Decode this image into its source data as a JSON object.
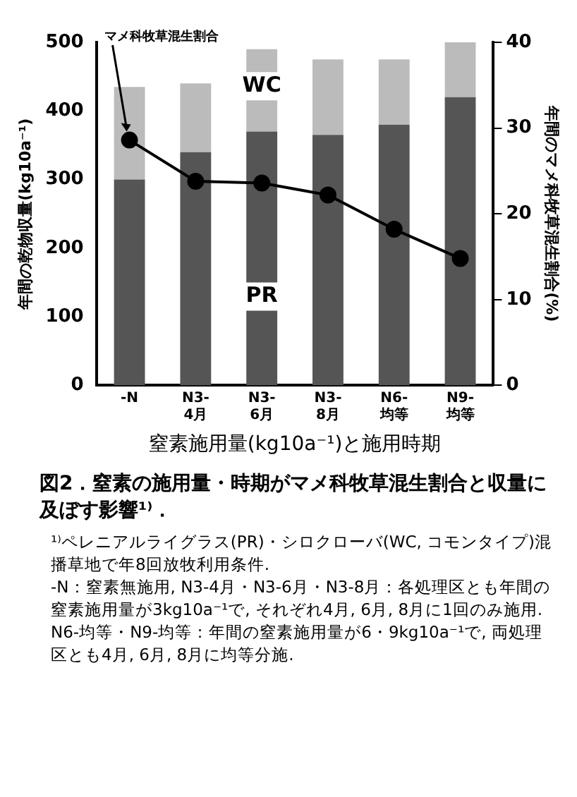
{
  "chart_data": {
    "type": "bar",
    "stacked": true,
    "title": "図2．窒素の施用量・時期がマメ科牧草混生割合と収量に及ぼす影響¹⁾．",
    "xlabel": "窒素施用量(kg10a⁻¹)と施用時期",
    "ylabel": "年間の乾物収量(kg10a⁻¹)",
    "y2label": "年間のマメ科牧草混生割合(%)",
    "categories": [
      "-N",
      "N3-\n4月",
      "N3-\n6月",
      "N3-\n8月",
      "N6-\n均等",
      "N9-\n均等"
    ],
    "series": [
      {
        "name": "PR",
        "color": "#555555",
        "values": [
          300,
          340,
          370,
          365,
          380,
          420
        ]
      },
      {
        "name": "WC",
        "color": "#bbbbbb",
        "values": [
          135,
          100,
          120,
          110,
          95,
          80
        ]
      },
      {
        "name": "マメ科牧草混生割合",
        "type": "line",
        "axis": "y2",
        "color": "#000000",
        "values": [
          28.6,
          23.8,
          23.6,
          22.2,
          18.2,
          14.8
        ]
      }
    ],
    "ylim": [
      0,
      500
    ],
    "yticks": [
      0,
      100,
      200,
      300,
      400,
      500
    ],
    "y2lim": [
      0,
      40
    ],
    "y2ticks": [
      0,
      10,
      20,
      30,
      40
    ],
    "marker": "circle",
    "line_style": "solid",
    "grid": false,
    "legend": false,
    "annotations": [
      "¹⁾ペレニアルライグラス(PR)・シロクローバ(WC, コモンタイプ)混播草地で年8回放牧利用条件.",
      "-N：窒素無施用, N3-4月・N3-6月・N3-8月：各処理区とも年間の窒素施用量が3kg10a⁻¹で, それぞれ4月, 6月, 8月に1回のみ施用.",
      "N6-均等・N9-均等：年間の窒素施用量が6・9kg10a⁻¹で, 両処理区とも4月, 6月, 8月に均等分施."
    ]
  }
}
